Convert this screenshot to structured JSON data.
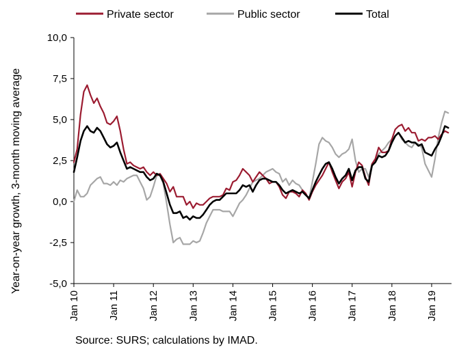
{
  "chart_data": {
    "type": "line",
    "title": "",
    "ylabel": "Year-on-year growth, 3-month moving average",
    "xlabel": "",
    "ylim": [
      -5.0,
      10.0
    ],
    "yticks": [
      "-5,0",
      "-2,5",
      "0,0",
      "2,5",
      "5,0",
      "7,5",
      "10,0"
    ],
    "ytick_values": [
      -5.0,
      -2.5,
      0.0,
      2.5,
      5.0,
      7.5,
      10.0
    ],
    "xticks": [
      "Jan 10",
      "Jan 11",
      "Jan 12",
      "Jan 13",
      "Jan 14",
      "Jan 15",
      "Jan 16",
      "Jan 17",
      "Jan 18",
      "Jan 19"
    ],
    "x_start": "Jan 10",
    "x_end": "Apr 19",
    "grid": false,
    "legend_position": "top",
    "series": [
      {
        "name": "Private sector",
        "color": "#9b1b30",
        "values": [
          2.4,
          3.2,
          5.3,
          6.7,
          7.1,
          6.5,
          6.0,
          6.3,
          5.8,
          5.4,
          4.8,
          4.7,
          4.9,
          5.2,
          4.3,
          3.2,
          2.3,
          2.4,
          2.2,
          2.1,
          2.0,
          2.1,
          1.8,
          1.6,
          1.8,
          1.6,
          1.7,
          1.4,
          1.1,
          0.6,
          0.9,
          0.3,
          0.3,
          0.3,
          -0.2,
          0.0,
          -0.4,
          -0.1,
          -0.2,
          -0.2,
          0.0,
          0.2,
          0.3,
          0.3,
          0.3,
          0.4,
          0.8,
          0.7,
          1.2,
          1.3,
          1.6,
          2.0,
          1.8,
          1.6,
          1.2,
          1.5,
          1.8,
          1.6,
          1.4,
          1.1,
          1.2,
          1.2,
          0.9,
          0.4,
          0.2,
          0.6,
          0.6,
          0.5,
          0.3,
          0.7,
          0.5,
          0.1,
          0.6,
          1.0,
          1.3,
          1.6,
          2.0,
          2.4,
          1.8,
          1.3,
          0.8,
          1.2,
          1.4,
          1.8,
          0.9,
          1.8,
          2.4,
          2.2,
          1.5,
          1.0,
          2.3,
          2.6,
          3.3,
          3.0,
          3.0,
          3.1,
          3.8,
          4.4,
          4.6,
          4.7,
          4.3,
          4.5,
          4.2,
          4.2,
          3.7,
          3.8,
          3.7,
          3.9,
          3.9,
          4.0,
          3.8,
          4.1,
          4.3,
          4.2
        ]
      },
      {
        "name": "Public sector",
        "color": "#a6a6a6",
        "values": [
          0.0,
          0.7,
          0.3,
          0.3,
          0.5,
          1.0,
          1.2,
          1.4,
          1.5,
          1.1,
          1.1,
          1.0,
          1.2,
          1.0,
          1.3,
          1.2,
          1.4,
          1.5,
          1.6,
          1.6,
          1.2,
          0.8,
          0.1,
          0.3,
          0.9,
          1.6,
          1.6,
          1.1,
          -0.1,
          -1.4,
          -2.5,
          -2.3,
          -2.2,
          -2.6,
          -2.6,
          -2.6,
          -2.4,
          -2.5,
          -2.4,
          -1.9,
          -1.3,
          -0.9,
          -0.5,
          -0.5,
          -0.5,
          -0.6,
          -0.6,
          -0.6,
          -0.9,
          -0.5,
          -0.1,
          0.1,
          0.4,
          0.8,
          1.2,
          1.3,
          1.4,
          1.6,
          1.8,
          1.9,
          2.0,
          1.8,
          1.7,
          1.2,
          1.4,
          1.0,
          1.3,
          1.1,
          1.0,
          0.7,
          0.4,
          0.2,
          1.2,
          2.3,
          3.5,
          3.9,
          3.7,
          3.6,
          3.3,
          2.9,
          2.7,
          2.9,
          3.0,
          3.2,
          3.8,
          2.5,
          1.8,
          2.0,
          2.0,
          1.5,
          2.3,
          2.6,
          2.9,
          3.1,
          3.3,
          3.6,
          3.8,
          4.0,
          4.2,
          3.8,
          3.6,
          3.4,
          3.3,
          3.6,
          3.5,
          3.3,
          2.3,
          1.9,
          1.5,
          2.6,
          3.9,
          4.8,
          5.5,
          5.4
        ]
      },
      {
        "name": "Total",
        "color": "#000000",
        "values": [
          1.8,
          2.7,
          3.7,
          4.3,
          4.6,
          4.3,
          4.2,
          4.5,
          4.3,
          3.9,
          3.5,
          3.3,
          3.4,
          3.6,
          3.0,
          2.5,
          2.0,
          2.1,
          2.0,
          1.9,
          1.8,
          1.8,
          1.5,
          1.3,
          1.4,
          1.7,
          1.6,
          1.2,
          0.5,
          -0.2,
          -0.7,
          -0.7,
          -0.6,
          -1.0,
          -0.9,
          -1.1,
          -0.9,
          -1.0,
          -1.0,
          -0.8,
          -0.5,
          -0.2,
          0.0,
          0.1,
          0.1,
          0.3,
          0.5,
          0.5,
          0.5,
          0.5,
          0.7,
          1.0,
          0.9,
          1.0,
          0.6,
          1.0,
          1.3,
          1.4,
          1.4,
          1.3,
          1.2,
          1.2,
          1.0,
          0.7,
          0.5,
          0.6,
          0.7,
          0.6,
          0.5,
          0.6,
          0.4,
          0.2,
          0.7,
          1.2,
          1.6,
          2.0,
          2.3,
          2.4,
          2.0,
          1.5,
          1.1,
          1.4,
          1.6,
          2.0,
          1.3,
          1.9,
          2.1,
          2.1,
          1.4,
          1.2,
          2.2,
          2.4,
          2.8,
          2.7,
          2.8,
          3.1,
          3.6,
          4.0,
          4.2,
          3.9,
          3.6,
          3.7,
          3.6,
          3.6,
          3.4,
          3.5,
          3.0,
          2.9,
          2.8,
          3.2,
          3.5,
          4.0,
          4.6,
          4.5
        ]
      }
    ],
    "source": "Source: SURS; calculations by IMAD."
  }
}
